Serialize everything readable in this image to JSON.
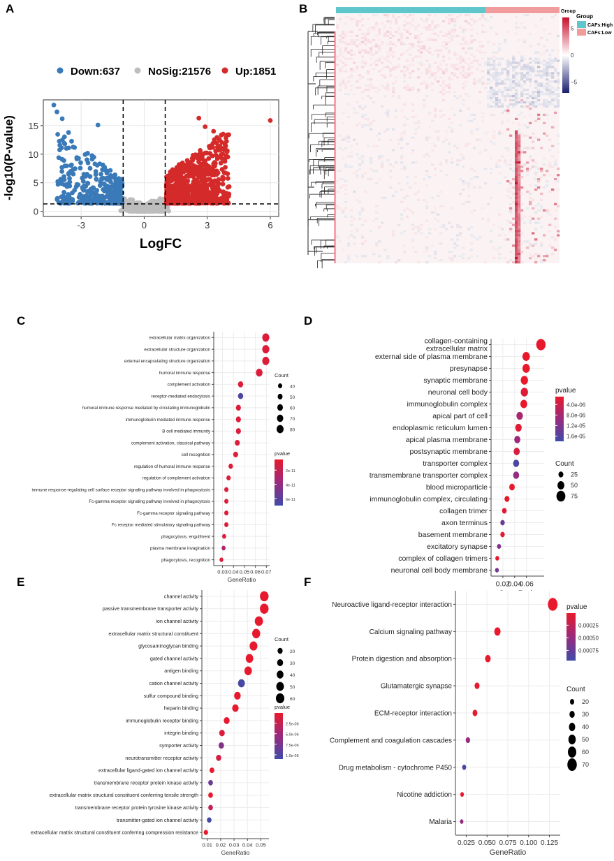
{
  "panels": {
    "A": "A",
    "B": "B",
    "C": "C",
    "D": "D",
    "E": "E",
    "F": "F"
  },
  "colors": {
    "down": "#3a7ab8",
    "nosig": "#bdbdbd",
    "up": "#d42a2a",
    "high": "#e8192c",
    "low": "#3f4ba8",
    "cafs_high": "#5fc7cc",
    "cafs_low": "#f19c9c"
  },
  "chart_data": [
    {
      "id": "A",
      "type": "scatter",
      "title": "",
      "xlabel": "LogFC",
      "ylabel": "-log10(P-value)",
      "xlim": [
        -4.8,
        6.4
      ],
      "ylim": [
        -0.9,
        19.5
      ],
      "xticks": [
        -3,
        0,
        3,
        6
      ],
      "yticks": [
        0,
        5,
        10,
        15
      ],
      "legend": [
        {
          "label": "Down:637",
          "group": "down"
        },
        {
          "label": "NoSig:21576",
          "group": "nosig"
        },
        {
          "label": "Up:1851",
          "group": "up"
        }
      ],
      "thresholds": {
        "logfc": [
          -1,
          1
        ],
        "neglog10p": 1.3
      },
      "highlight_points": [
        {
          "x": -4.3,
          "y": 18.6
        },
        {
          "x": -4.15,
          "y": 17.4
        },
        {
          "x": -3.9,
          "y": 16.2
        },
        {
          "x": -2.2,
          "y": 15.1
        },
        {
          "x": 2.6,
          "y": 16.3
        },
        {
          "x": 6.0,
          "y": 15.9
        },
        {
          "x": -3.6,
          "y": 13.8
        },
        {
          "x": 2.9,
          "y": 14.8
        },
        {
          "x": 3.3,
          "y": 14.0
        }
      ]
    },
    {
      "id": "B",
      "type": "heatmap",
      "legend_title": "Group",
      "groups": [
        "CAFs:High",
        "CAFs:Low"
      ],
      "scale_ticks": [
        5,
        0,
        -5
      ],
      "scale_range": [
        -7,
        7
      ]
    },
    {
      "id": "C",
      "type": "scatter",
      "xlabel": "GeneRatio",
      "xlim": [
        0.022,
        0.073
      ],
      "xticks": [
        0.03,
        0.04,
        0.05,
        0.06,
        0.07
      ],
      "xtick_labels": [
        "0.03",
        "0.04",
        "0.05",
        "0.06",
        "0.07"
      ],
      "count_title": "Count",
      "count_levels": [
        40,
        50,
        60,
        70,
        80
      ],
      "count_range": [
        35,
        85
      ],
      "pvalue_title": "pvalue",
      "pvalue_ticks": [
        2e-11,
        4e-11,
        6e-11
      ],
      "pvalue_tick_labels": [
        "2e-11",
        "4e-11",
        "6e-11"
      ],
      "pvalue_range": [
        5e-12,
        7e-11
      ],
      "terms": [
        {
          "term": "extracellular matrix organization",
          "ratio": 0.0695,
          "count": 82,
          "p": 1e-11
        },
        {
          "term": "extracellular structure organization",
          "ratio": 0.0695,
          "count": 82,
          "p": 1e-11
        },
        {
          "term": "external encapsulating structure organization",
          "ratio": 0.0695,
          "count": 82,
          "p": 1e-11
        },
        {
          "term": "humoral immune response",
          "ratio": 0.0635,
          "count": 75,
          "p": 1e-11
        },
        {
          "term": "complement activation",
          "ratio": 0.0465,
          "count": 55,
          "p": 1e-11
        },
        {
          "term": "receptor-mediated endocytosis",
          "ratio": 0.0465,
          "count": 55,
          "p": 6.5e-11
        },
        {
          "term": "humoral immune response mediated by circulating immunoglobulin",
          "ratio": 0.0445,
          "count": 52,
          "p": 1e-11
        },
        {
          "term": "immunoglobulin mediated immune response",
          "ratio": 0.0445,
          "count": 52,
          "p": 1e-11
        },
        {
          "term": "B cell mediated immunity",
          "ratio": 0.0445,
          "count": 52,
          "p": 1e-11
        },
        {
          "term": "complement activation, classical pathway",
          "ratio": 0.0435,
          "count": 51,
          "p": 1e-11
        },
        {
          "term": "cell recognition",
          "ratio": 0.042,
          "count": 50,
          "p": 1e-11
        },
        {
          "term": "regulation of humoral immune response",
          "ratio": 0.0375,
          "count": 44,
          "p": 1e-11
        },
        {
          "term": "regulation of complement activation",
          "ratio": 0.0355,
          "count": 42,
          "p": 1e-11
        },
        {
          "term": "immune response-regulating cell surface receptor signaling pathway involved in phagocytosis",
          "ratio": 0.0335,
          "count": 40,
          "p": 1e-11
        },
        {
          "term": "Fc-gamma receptor signaling pathway involved in phagocytosis",
          "ratio": 0.0335,
          "count": 40,
          "p": 1e-11
        },
        {
          "term": "Fc-gamma receptor signaling pathway",
          "ratio": 0.0335,
          "count": 40,
          "p": 1e-11
        },
        {
          "term": "Fc receptor mediated stimulatory signaling pathway",
          "ratio": 0.0335,
          "count": 40,
          "p": 1e-11
        },
        {
          "term": "phagocytosis, engulfment",
          "ratio": 0.0315,
          "count": 37,
          "p": 1e-11
        },
        {
          "term": "plasma membrane invagination",
          "ratio": 0.031,
          "count": 37,
          "p": 3e-11
        },
        {
          "term": "phagocytosis, recognition",
          "ratio": 0.029,
          "count": 35,
          "p": 1e-11
        }
      ]
    },
    {
      "id": "D",
      "type": "scatter",
      "xlabel": "GeneRatio",
      "xlim": [
        0.0,
        0.09
      ],
      "xticks": [
        0.02,
        0.04,
        0.06
      ],
      "xtick_labels": [
        "0.02",
        "0.04",
        "0.06"
      ],
      "count_title": "Count",
      "count_levels": [
        25,
        50,
        75
      ],
      "count_range": [
        10,
        85
      ],
      "pvalue_title": "pvalue",
      "pvalue_ticks": [
        4e-06,
        8e-06,
        1.2e-05,
        1.6e-05
      ],
      "pvalue_tick_labels": [
        "4.0e-06",
        "8.0e-06",
        "1.2e-05",
        "1.6e-05"
      ],
      "pvalue_range": [
        1e-06,
        1.8e-05
      ],
      "terms": [
        {
          "term": "collagen-containing\nextracellular matrix",
          "ratio": 0.0845,
          "count": 80,
          "p": 1e-06
        },
        {
          "term": "external side of plasma membrane",
          "ratio": 0.0595,
          "count": 56,
          "p": 1e-06
        },
        {
          "term": "presynapse",
          "ratio": 0.0595,
          "count": 56,
          "p": 1e-06
        },
        {
          "term": "synaptic membrane",
          "ratio": 0.0565,
          "count": 54,
          "p": 1e-06
        },
        {
          "term": "neuronal cell body",
          "ratio": 0.0565,
          "count": 54,
          "p": 2e-06
        },
        {
          "term": "immunoglobulin complex",
          "ratio": 0.0555,
          "count": 50,
          "p": 1e-06
        },
        {
          "term": "apical part of cell",
          "ratio": 0.0485,
          "count": 45,
          "p": 8e-06
        },
        {
          "term": "endoplasmic reticulum lumen",
          "ratio": 0.0465,
          "count": 44,
          "p": 2e-06
        },
        {
          "term": "apical plasma membrane",
          "ratio": 0.0445,
          "count": 40,
          "p": 9e-06
        },
        {
          "term": "postsynaptic membrane",
          "ratio": 0.0435,
          "count": 40,
          "p": 3e-06
        },
        {
          "term": "transporter complex",
          "ratio": 0.0425,
          "count": 39,
          "p": 1.7e-05
        },
        {
          "term": "transmembrane transporter complex",
          "ratio": 0.0425,
          "count": 39,
          "p": 1e-05
        },
        {
          "term": "blood microparticle",
          "ratio": 0.0355,
          "count": 33,
          "p": 1e-06
        },
        {
          "term": "immunoglobulin complex, circulating",
          "ratio": 0.027,
          "count": 26,
          "p": 1e-06
        },
        {
          "term": "collagen trimer",
          "ratio": 0.0225,
          "count": 22,
          "p": 2e-06
        },
        {
          "term": "axon terminus",
          "ratio": 0.0195,
          "count": 19,
          "p": 1.4e-05
        },
        {
          "term": "basement membrane",
          "ratio": 0.0195,
          "count": 19,
          "p": 2e-06
        },
        {
          "term": "excitatory synapse",
          "ratio": 0.0135,
          "count": 15,
          "p": 1.2e-05
        },
        {
          "term": "complex of collagen trimers",
          "ratio": 0.0105,
          "count": 12,
          "p": 1e-06
        },
        {
          "term": "neuronal cell body membrane",
          "ratio": 0.01,
          "count": 11,
          "p": 1.3e-05
        }
      ]
    },
    {
      "id": "E",
      "type": "scatter",
      "xlabel": "GeneRatio",
      "xlim": [
        0.006,
        0.056
      ],
      "xticks": [
        0.01,
        0.02,
        0.03,
        0.04,
        0.05
      ],
      "xtick_labels": [
        "0.01",
        "0.02",
        "0.03",
        "0.04",
        "0.05"
      ],
      "count_title": "Count",
      "count_levels": [
        20,
        30,
        40,
        50,
        60
      ],
      "count_range": [
        5,
        65
      ],
      "pvalue_title": "pvalue",
      "pvalue_ticks": [
        2.5e-06,
        5e-06,
        7.5e-06,
        1e-05
      ],
      "pvalue_tick_labels": [
        "2.5e-06",
        "5.0e-06",
        "7.5e-06",
        "1.0e-05"
      ],
      "pvalue_range": [
        1e-07,
        1.1e-05
      ],
      "terms": [
        {
          "term": "channel activity",
          "ratio": 0.0525,
          "count": 62,
          "p": 2e-07
        },
        {
          "term": "passive transmembrane transporter activity",
          "ratio": 0.0525,
          "count": 62,
          "p": 2e-07
        },
        {
          "term": "ion channel activity",
          "ratio": 0.0485,
          "count": 57,
          "p": 2e-07
        },
        {
          "term": "extracellular matrix structural constituent",
          "ratio": 0.0465,
          "count": 55,
          "p": 2e-07
        },
        {
          "term": "glycosaminoglycan binding",
          "ratio": 0.0445,
          "count": 52,
          "p": 2e-07
        },
        {
          "term": "gated channel activity",
          "ratio": 0.0415,
          "count": 49,
          "p": 2e-07
        },
        {
          "term": "antigen binding",
          "ratio": 0.0405,
          "count": 48,
          "p": 2e-07
        },
        {
          "term": "cation channel activity",
          "ratio": 0.0355,
          "count": 42,
          "p": 1.05e-05
        },
        {
          "term": "sulfur compound binding",
          "ratio": 0.0325,
          "count": 38,
          "p": 2e-07
        },
        {
          "term": "heparin binding",
          "ratio": 0.031,
          "count": 36,
          "p": 2e-07
        },
        {
          "term": "immunoglobulin receptor binding",
          "ratio": 0.0245,
          "count": 29,
          "p": 2e-07
        },
        {
          "term": "integrin binding",
          "ratio": 0.021,
          "count": 25,
          "p": 1e-06
        },
        {
          "term": "symporter activity",
          "ratio": 0.0205,
          "count": 24,
          "p": 7e-06
        },
        {
          "term": "neurotransmitter receptor activity",
          "ratio": 0.0185,
          "count": 22,
          "p": 1.5e-06
        },
        {
          "term": "extracellular ligand-gated ion channel activity",
          "ratio": 0.0135,
          "count": 16,
          "p": 2e-07
        },
        {
          "term": "transmembrane receptor protein kinase activity",
          "ratio": 0.0125,
          "count": 15,
          "p": 8.5e-06
        },
        {
          "term": "extracellular matrix structural constituent conferring tensile strength",
          "ratio": 0.0125,
          "count": 15,
          "p": 2e-07
        },
        {
          "term": "transmembrane receptor protein tyrosine kinase activity",
          "ratio": 0.0125,
          "count": 15,
          "p": 3e-06
        },
        {
          "term": "transmitter-gated ion channel activity",
          "ratio": 0.0115,
          "count": 14,
          "p": 1.05e-05
        },
        {
          "term": "extracellular matrix structural constituent conferring compression resistance",
          "ratio": 0.009,
          "count": 11,
          "p": 2e-07
        }
      ]
    },
    {
      "id": "F",
      "type": "scatter",
      "xlabel": "GeneRatio",
      "xlim": [
        0.012,
        0.138
      ],
      "xticks": [
        0.025,
        0.05,
        0.075,
        0.1,
        0.125
      ],
      "xtick_labels": [
        "0.025",
        "0.050",
        "0.075",
        "0.100",
        "0.125"
      ],
      "count_title": "Count",
      "count_levels": [
        20,
        30,
        40,
        50,
        60,
        70
      ],
      "count_range": [
        10,
        75
      ],
      "pvalue_title": "pvalue",
      "pvalue_ticks": [
        0.00025,
        0.0005,
        0.00075
      ],
      "pvalue_tick_labels": [
        "0.00025",
        "0.00050",
        "0.00075"
      ],
      "pvalue_range": [
        1e-05,
        0.00095
      ],
      "terms": [
        {
          "term": "Neuroactive ligand-receptor interaction",
          "ratio": 0.129,
          "count": 72,
          "p": 1e-05
        },
        {
          "term": "Calcium signaling pathway",
          "ratio": 0.0625,
          "count": 40,
          "p": 1e-05
        },
        {
          "term": "Protein digestion and absorption",
          "ratio": 0.051,
          "count": 33,
          "p": 1e-05
        },
        {
          "term": "Glutamatergic synapse",
          "ratio": 0.038,
          "count": 27,
          "p": 3e-05
        },
        {
          "term": "ECM-receptor interaction",
          "ratio": 0.0355,
          "count": 26,
          "p": 2e-05
        },
        {
          "term": "Complement and coagulation cascades",
          "ratio": 0.027,
          "count": 22,
          "p": 0.0005
        },
        {
          "term": "Drug metabolism - cytochrome P450",
          "ratio": 0.0225,
          "count": 18,
          "p": 0.0009
        },
        {
          "term": "Nicotine addiction",
          "ratio": 0.02,
          "count": 14,
          "p": 2e-05
        },
        {
          "term": "Malaria",
          "ratio": 0.0195,
          "count": 13,
          "p": 0.0005
        }
      ]
    }
  ]
}
